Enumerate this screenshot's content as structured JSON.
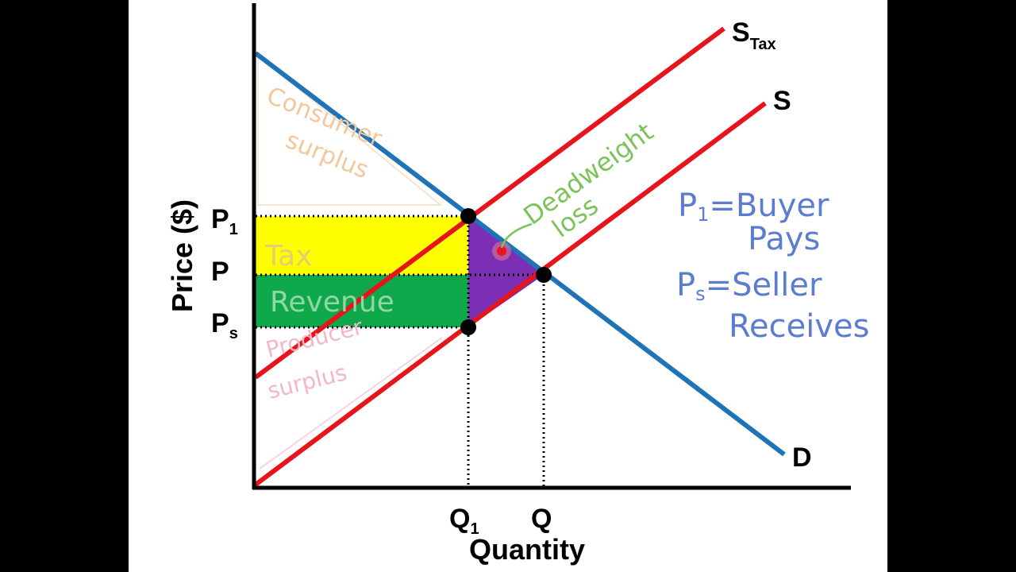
{
  "axes": {
    "y_title": "Price ($)",
    "x_title": "Quantity"
  },
  "price_labels": {
    "p1_main": "P",
    "p1_sub": "1",
    "p": "P",
    "ps_main": "P",
    "ps_sub": "s"
  },
  "quantity_labels": {
    "q1_main": "Q",
    "q1_sub": "1",
    "q": "Q"
  },
  "curve_labels": {
    "stax_main": "S",
    "stax_sub": "Tax",
    "s": "S",
    "d": "D"
  },
  "annotations": {
    "consumer": [
      "Consumer",
      "surplus"
    ],
    "tax": "Tax",
    "revenue": "Revenue",
    "producer": [
      "Producer",
      "surplus"
    ],
    "deadweight": [
      "Deadweight",
      "loss"
    ],
    "buyer": [
      "P",
      "1",
      "=Buyer",
      "Pays"
    ],
    "seller": [
      "P",
      "s",
      "=Seller",
      "Receives"
    ]
  },
  "colors": {
    "supply": "#e8141c",
    "demand": "#1f73b7",
    "tax_area": "#ffff00",
    "revenue_area": "#0fa84a",
    "deadweight_area": "#7a2fb5",
    "consumer_text": "#f2c79b",
    "producer_text": "#f4b6c8",
    "deadweight_text": "#7cc35a",
    "note_text": "#5b7ccf"
  }
}
